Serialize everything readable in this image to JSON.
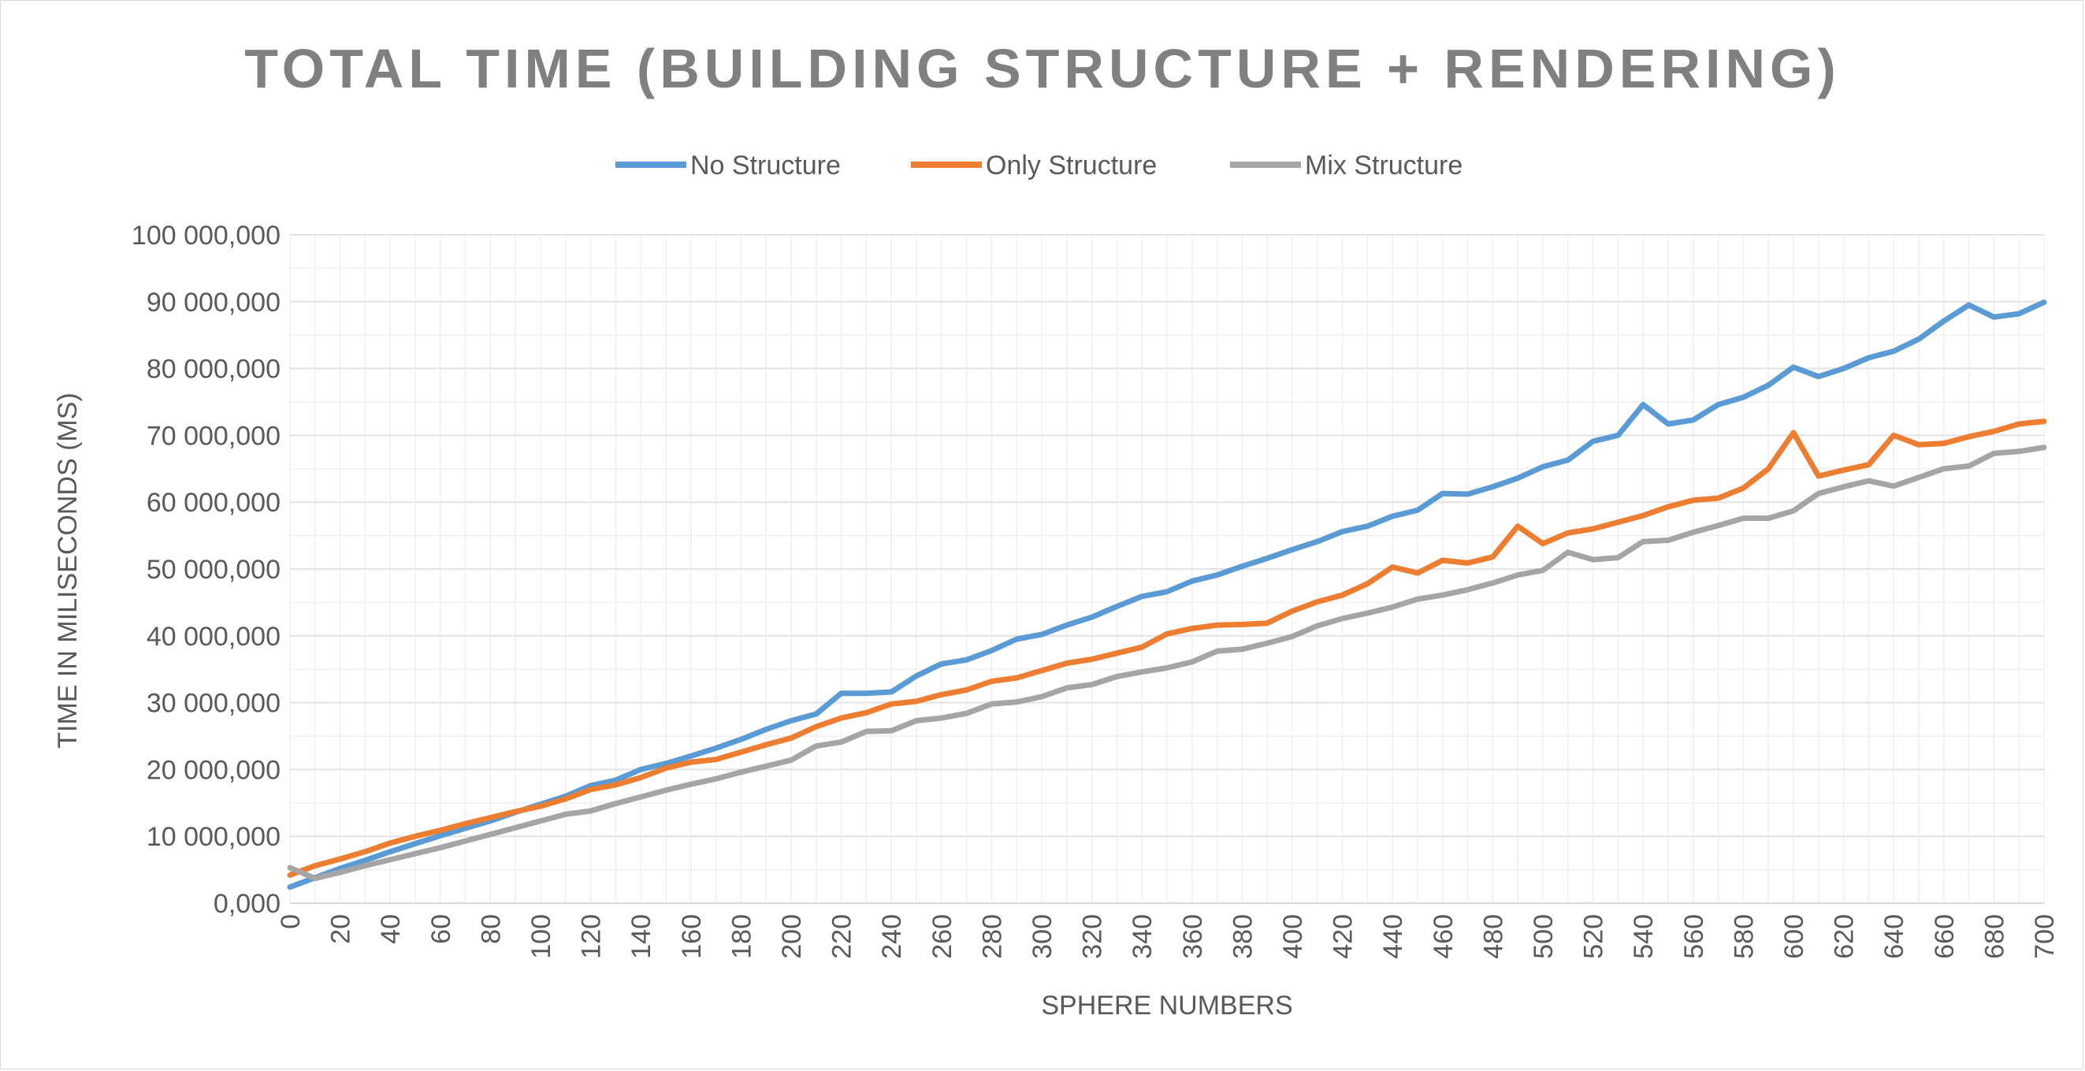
{
  "chart_data": {
    "type": "line",
    "title": "TOTAL TIME (BUILDING STRUCTURE + RENDERING)",
    "xlabel": "SPHERE NUMBERS",
    "ylabel": "TIME IN MILISECONDS (MS)",
    "ylim": [
      0,
      100000000
    ],
    "yticks": [
      0,
      10000000,
      20000000,
      30000000,
      40000000,
      50000000,
      60000000,
      70000000,
      80000000,
      90000000,
      100000000
    ],
    "ytick_labels": [
      "0,000",
      "10 000,000",
      "20 000,000",
      "30 000,000",
      "40 000,000",
      "50 000,000",
      "60 000,000",
      "70 000,000",
      "80 000,000",
      "90 000,000",
      "100 000,000"
    ],
    "x": [
      0,
      10,
      20,
      30,
      40,
      50,
      60,
      70,
      80,
      90,
      100,
      110,
      120,
      130,
      140,
      150,
      160,
      170,
      180,
      190,
      200,
      210,
      220,
      230,
      240,
      250,
      260,
      270,
      280,
      290,
      300,
      310,
      320,
      330,
      340,
      350,
      360,
      370,
      380,
      390,
      400,
      410,
      420,
      430,
      440,
      450,
      460,
      470,
      480,
      490,
      500,
      510,
      520,
      530,
      540,
      550,
      560,
      570,
      580,
      590,
      600,
      610,
      620,
      630,
      640,
      650,
      660,
      670,
      680,
      690,
      700
    ],
    "xtick_labels": [
      "0",
      "20",
      "40",
      "60",
      "80",
      "100",
      "120",
      "140",
      "160",
      "180",
      "200",
      "220",
      "240",
      "260",
      "280",
      "300",
      "320",
      "340",
      "360",
      "380",
      "400",
      "420",
      "440",
      "460",
      "480",
      "500",
      "520",
      "540",
      "560",
      "580",
      "600",
      "620",
      "640",
      "660",
      "680",
      "700"
    ],
    "legend_position": "top",
    "grid": true,
    "series": [
      {
        "name": "No Structure",
        "color": "#5b9bd5",
        "values": [
          2.4,
          3.8,
          5.2,
          6.4,
          7.7,
          8.9,
          10.1,
          11.2,
          12.3,
          13.6,
          14.8,
          16.0,
          17.6,
          18.4,
          20.0,
          20.9,
          22.0,
          23.2,
          24.5,
          26.0,
          27.3,
          28.3,
          31.4,
          31.4,
          31.6,
          34.0,
          35.8,
          36.4,
          37.8,
          39.5,
          40.2,
          41.6,
          42.8,
          44.4,
          45.9,
          46.6,
          48.2,
          49.1,
          50.4,
          51.6,
          52.9,
          54.1,
          55.6,
          56.4,
          57.9,
          58.8,
          61.3,
          61.2,
          62.3,
          63.6,
          65.3,
          66.3,
          69.1,
          70.0,
          74.6,
          71.7,
          72.3,
          74.6,
          75.7,
          77.5,
          80.2,
          78.8,
          80.0,
          81.6,
          82.6,
          84.4,
          87.1,
          89.5,
          87.7,
          88.2,
          89.9
        ]
      },
      {
        "name": "Only Structure",
        "color": "#ed7d31",
        "values": [
          4.2,
          5.6,
          6.6,
          7.7,
          9.0,
          10.0,
          10.9,
          11.9,
          12.8,
          13.7,
          14.5,
          15.6,
          17.0,
          17.7,
          18.8,
          20.2,
          21.1,
          21.5,
          22.6,
          23.7,
          24.7,
          26.4,
          27.7,
          28.5,
          29.8,
          30.2,
          31.2,
          31.9,
          33.2,
          33.7,
          34.8,
          35.9,
          36.5,
          37.4,
          38.3,
          40.3,
          41.1,
          41.6,
          41.7,
          41.9,
          43.7,
          45.1,
          46.1,
          47.8,
          50.3,
          49.4,
          51.3,
          50.9,
          51.8,
          56.4,
          53.8,
          55.4,
          56.0,
          57.0,
          58.0,
          59.3,
          60.3,
          60.6,
          62.1,
          65.0,
          70.4,
          63.9,
          64.8,
          65.6,
          70.0,
          68.6,
          68.8,
          69.8,
          70.6,
          71.7,
          72.1
        ]
      },
      {
        "name": "Mix Structure",
        "color": "#a5a5a5",
        "values": [
          5.3,
          3.7,
          4.6,
          5.6,
          6.5,
          7.4,
          8.3,
          9.3,
          10.3,
          11.3,
          12.3,
          13.3,
          13.8,
          14.9,
          15.9,
          16.9,
          17.8,
          18.6,
          19.6,
          20.5,
          21.4,
          23.5,
          24.1,
          25.7,
          25.8,
          27.3,
          27.7,
          28.4,
          29.8,
          30.1,
          30.9,
          32.2,
          32.7,
          33.9,
          34.6,
          35.2,
          36.1,
          37.7,
          38.0,
          38.9,
          39.9,
          41.5,
          42.6,
          43.4,
          44.3,
          45.5,
          46.1,
          46.9,
          47.9,
          49.1,
          49.8,
          52.5,
          51.4,
          51.7,
          54.1,
          54.3,
          55.5,
          56.5,
          57.6,
          57.6,
          58.7,
          61.3,
          62.3,
          63.2,
          62.4,
          63.7,
          65.0,
          65.4,
          67.3,
          67.6,
          68.2
        ]
      }
    ]
  }
}
